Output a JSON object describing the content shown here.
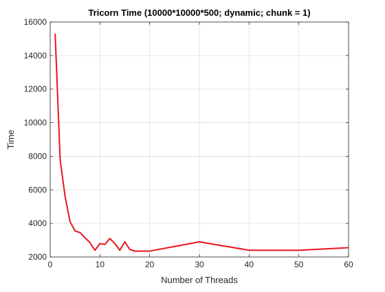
{
  "chart_data": {
    "type": "line",
    "title": "Tricorn Time (10000*10000*500; dynamic; chunk = 1)",
    "xlabel": "Number of Threads",
    "ylabel": "Time",
    "xlim": [
      0,
      60
    ],
    "ylim": [
      2000,
      16000
    ],
    "xticks": [
      0,
      10,
      20,
      30,
      40,
      50,
      60
    ],
    "yticks": [
      2000,
      4000,
      6000,
      8000,
      10000,
      12000,
      14000,
      16000
    ],
    "grid": true,
    "series": [
      {
        "color": "#e8141c",
        "x": [
          1,
          2,
          3,
          4,
          5,
          6,
          7,
          8,
          9,
          10,
          11,
          12,
          13,
          14,
          15,
          16,
          17,
          18,
          19,
          20,
          30,
          40,
          50,
          60
        ],
        "y": [
          15300,
          7800,
          5600,
          4100,
          3550,
          3450,
          3150,
          2850,
          2400,
          2800,
          2750,
          3100,
          2800,
          2400,
          2900,
          2450,
          2350,
          2350,
          2350,
          2350,
          2900,
          2400,
          2400,
          2550
        ]
      }
    ]
  }
}
